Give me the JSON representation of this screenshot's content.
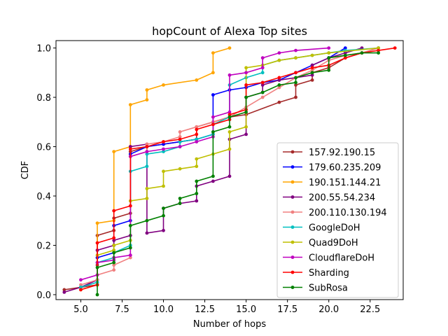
{
  "chart_data": {
    "type": "line",
    "title": "hopCount of Alexa Top sites",
    "xlabel": "Number of hops",
    "ylabel": "CDF",
    "xlim": [
      3.5,
      24.5
    ],
    "ylim": [
      -0.02,
      1.03
    ],
    "xticks": [
      5.0,
      7.5,
      10.0,
      12.5,
      15.0,
      17.5,
      20.0,
      22.5
    ],
    "xtick_labels": [
      "5.0",
      "7.5",
      "10.0",
      "12.5",
      "15.0",
      "17.5",
      "20.0",
      "22.5"
    ],
    "yticks": [
      0.0,
      0.2,
      0.4,
      0.6,
      0.8,
      1.0
    ],
    "ytick_labels": [
      "0.0",
      "0.2",
      "0.4",
      "0.6",
      "0.8",
      "1.0"
    ],
    "grid": false,
    "legend_position": "lower-right",
    "series": [
      {
        "name": "157.92.190.15",
        "color": "#a52a2a",
        "points": [
          [
            4,
            0.02
          ],
          [
            6,
            0.04
          ],
          [
            6,
            0.12
          ],
          [
            6,
            0.24
          ],
          [
            7,
            0.26
          ],
          [
            7,
            0.31
          ],
          [
            8,
            0.33
          ],
          [
            8,
            0.58
          ],
          [
            9,
            0.6
          ],
          [
            10,
            0.61
          ],
          [
            11,
            0.62
          ],
          [
            12,
            0.63
          ],
          [
            12,
            0.68
          ],
          [
            13,
            0.7
          ],
          [
            14,
            0.72
          ],
          [
            15,
            0.73
          ],
          [
            17,
            0.78
          ],
          [
            18,
            0.8
          ],
          [
            18,
            0.85
          ],
          [
            19,
            0.87
          ],
          [
            19,
            0.9
          ],
          [
            20,
            0.92
          ],
          [
            21,
            0.96
          ],
          [
            22,
            0.98
          ],
          [
            23,
            1.0
          ]
        ]
      },
      {
        "name": "179.60.235.209",
        "color": "#0000ff",
        "points": [
          [
            5,
            0.03
          ],
          [
            6,
            0.06
          ],
          [
            6,
            0.15
          ],
          [
            7,
            0.17
          ],
          [
            7,
            0.28
          ],
          [
            8,
            0.3
          ],
          [
            8,
            0.57
          ],
          [
            9,
            0.6
          ],
          [
            10,
            0.61
          ],
          [
            11,
            0.62
          ],
          [
            12,
            0.63
          ],
          [
            13,
            0.65
          ],
          [
            13,
            0.81
          ],
          [
            14,
            0.83
          ],
          [
            15,
            0.84
          ],
          [
            16,
            0.86
          ],
          [
            17,
            0.87
          ],
          [
            18,
            0.9
          ],
          [
            19,
            0.93
          ],
          [
            20,
            0.96
          ],
          [
            21,
            1.0
          ]
        ]
      },
      {
        "name": "190.151.144.21",
        "color": "#ffa500",
        "points": [
          [
            6,
            0.04
          ],
          [
            6,
            0.29
          ],
          [
            7,
            0.3
          ],
          [
            7,
            0.58
          ],
          [
            8,
            0.6
          ],
          [
            8,
            0.77
          ],
          [
            9,
            0.79
          ],
          [
            9,
            0.83
          ],
          [
            10,
            0.85
          ],
          [
            12,
            0.87
          ],
          [
            13,
            0.9
          ],
          [
            13,
            0.98
          ],
          [
            14,
            1.0
          ]
        ]
      },
      {
        "name": "200.55.54.234",
        "color": "#800080",
        "points": [
          [
            4,
            0.01
          ],
          [
            5,
            0.03
          ],
          [
            6,
            0.06
          ],
          [
            6,
            0.18
          ],
          [
            7,
            0.2
          ],
          [
            7,
            0.22
          ],
          [
            8,
            0.24
          ],
          [
            8,
            0.6
          ],
          [
            9,
            0.61
          ],
          [
            9,
            0.25
          ],
          [
            10,
            0.26
          ],
          [
            10,
            0.35
          ],
          [
            11,
            0.37
          ],
          [
            12,
            0.38
          ],
          [
            12,
            0.44
          ],
          [
            13,
            0.46
          ],
          [
            14,
            0.48
          ],
          [
            14,
            0.63
          ],
          [
            15,
            0.65
          ],
          [
            15,
            0.8
          ],
          [
            16,
            0.82
          ],
          [
            16,
            0.85
          ],
          [
            17,
            0.87
          ],
          [
            18,
            0.88
          ],
          [
            19,
            0.89
          ],
          [
            19,
            0.93
          ],
          [
            20,
            0.96
          ],
          [
            21,
            0.98
          ],
          [
            22,
            1.0
          ]
        ]
      },
      {
        "name": "200.110.130.194",
        "color": "#f08080",
        "points": [
          [
            5,
            0.04
          ],
          [
            6,
            0.06
          ],
          [
            6,
            0.08
          ],
          [
            7,
            0.1
          ],
          [
            7,
            0.12
          ],
          [
            8,
            0.15
          ],
          [
            8,
            0.56
          ],
          [
            9,
            0.58
          ],
          [
            9,
            0.61
          ],
          [
            10,
            0.62
          ],
          [
            11,
            0.64
          ],
          [
            11,
            0.66
          ],
          [
            12,
            0.68
          ],
          [
            13,
            0.7
          ],
          [
            14,
            0.72
          ],
          [
            15,
            0.76
          ],
          [
            16,
            0.8
          ],
          [
            17,
            0.84
          ],
          [
            18,
            0.88
          ],
          [
            19,
            0.91
          ],
          [
            20,
            0.95
          ],
          [
            21,
            0.97
          ],
          [
            22,
            0.98
          ],
          [
            23,
            1.0
          ]
        ]
      },
      {
        "name": "GoogleDoH",
        "color": "#00bfbf",
        "points": [
          [
            5,
            0.03
          ],
          [
            6,
            0.05
          ],
          [
            6,
            0.13
          ],
          [
            7,
            0.15
          ],
          [
            7,
            0.17
          ],
          [
            8,
            0.2
          ],
          [
            8,
            0.5
          ],
          [
            9,
            0.52
          ],
          [
            9,
            0.57
          ],
          [
            10,
            0.58
          ],
          [
            11,
            0.6
          ],
          [
            11,
            0.62
          ],
          [
            12,
            0.63
          ],
          [
            13,
            0.65
          ],
          [
            13,
            0.69
          ],
          [
            14,
            0.72
          ],
          [
            14,
            0.85
          ],
          [
            15,
            0.88
          ],
          [
            16,
            0.9
          ],
          [
            16,
            0.93
          ],
          [
            17,
            0.95
          ],
          [
            18,
            0.96
          ],
          [
            19,
            0.97
          ],
          [
            20,
            0.98
          ],
          [
            21,
            0.99
          ],
          [
            23,
            1.0
          ]
        ]
      },
      {
        "name": "Quad9DoH",
        "color": "#bfbf00",
        "points": [
          [
            5,
            0.02
          ],
          [
            6,
            0.04
          ],
          [
            6,
            0.16
          ],
          [
            7,
            0.18
          ],
          [
            7,
            0.2
          ],
          [
            8,
            0.22
          ],
          [
            8,
            0.38
          ],
          [
            9,
            0.39
          ],
          [
            9,
            0.43
          ],
          [
            10,
            0.44
          ],
          [
            10,
            0.5
          ],
          [
            11,
            0.51
          ],
          [
            12,
            0.52
          ],
          [
            12,
            0.55
          ],
          [
            13,
            0.57
          ],
          [
            14,
            0.59
          ],
          [
            14,
            0.66
          ],
          [
            15,
            0.68
          ],
          [
            15,
            0.92
          ],
          [
            16,
            0.93
          ],
          [
            17,
            0.95
          ],
          [
            18,
            0.96
          ],
          [
            19,
            0.97
          ],
          [
            20,
            0.98
          ],
          [
            23,
            1.0
          ]
        ]
      },
      {
        "name": "CloudflareDoH",
        "color": "#bf00bf",
        "points": [
          [
            5,
            0.06
          ],
          [
            6,
            0.08
          ],
          [
            6,
            0.13
          ],
          [
            7,
            0.14
          ],
          [
            7,
            0.15
          ],
          [
            8,
            0.16
          ],
          [
            8,
            0.56
          ],
          [
            9,
            0.58
          ],
          [
            10,
            0.59
          ],
          [
            11,
            0.6
          ],
          [
            12,
            0.62
          ],
          [
            13,
            0.64
          ],
          [
            13,
            0.72
          ],
          [
            14,
            0.74
          ],
          [
            14,
            0.89
          ],
          [
            15,
            0.9
          ],
          [
            16,
            0.92
          ],
          [
            16,
            0.96
          ],
          [
            17,
            0.98
          ],
          [
            18,
            0.99
          ],
          [
            20,
            1.0
          ]
        ]
      },
      {
        "name": "Sharding",
        "color": "#ff0000",
        "points": [
          [
            5,
            0.02
          ],
          [
            6,
            0.04
          ],
          [
            6,
            0.21
          ],
          [
            7,
            0.23
          ],
          [
            7,
            0.34
          ],
          [
            8,
            0.36
          ],
          [
            8,
            0.59
          ],
          [
            9,
            0.6
          ],
          [
            10,
            0.62
          ],
          [
            11,
            0.63
          ],
          [
            12,
            0.65
          ],
          [
            12,
            0.67
          ],
          [
            13,
            0.69
          ],
          [
            14,
            0.71
          ],
          [
            14,
            0.73
          ],
          [
            15,
            0.75
          ],
          [
            15,
            0.85
          ],
          [
            16,
            0.86
          ],
          [
            17,
            0.88
          ],
          [
            18,
            0.9
          ],
          [
            19,
            0.92
          ],
          [
            20,
            0.93
          ],
          [
            21,
            0.96
          ],
          [
            22,
            0.98
          ],
          [
            23,
            0.99
          ],
          [
            24,
            1.0
          ]
        ]
      },
      {
        "name": "SubRosa",
        "color": "#008000",
        "points": [
          [
            6,
            0.0
          ],
          [
            6,
            0.11
          ],
          [
            7,
            0.13
          ],
          [
            7,
            0.17
          ],
          [
            8,
            0.19
          ],
          [
            8,
            0.28
          ],
          [
            9,
            0.3
          ],
          [
            10,
            0.32
          ],
          [
            10,
            0.35
          ],
          [
            11,
            0.37
          ],
          [
            11,
            0.39
          ],
          [
            12,
            0.41
          ],
          [
            12,
            0.46
          ],
          [
            13,
            0.48
          ],
          [
            13,
            0.66
          ],
          [
            14,
            0.68
          ],
          [
            14,
            0.72
          ],
          [
            15,
            0.74
          ],
          [
            15,
            0.8
          ],
          [
            16,
            0.82
          ],
          [
            17,
            0.85
          ],
          [
            18,
            0.86
          ],
          [
            18,
            0.88
          ],
          [
            19,
            0.9
          ],
          [
            20,
            0.91
          ],
          [
            20,
            0.96
          ],
          [
            21,
            0.97
          ],
          [
            22,
            0.98
          ],
          [
            23,
            0.98
          ]
        ]
      }
    ]
  }
}
